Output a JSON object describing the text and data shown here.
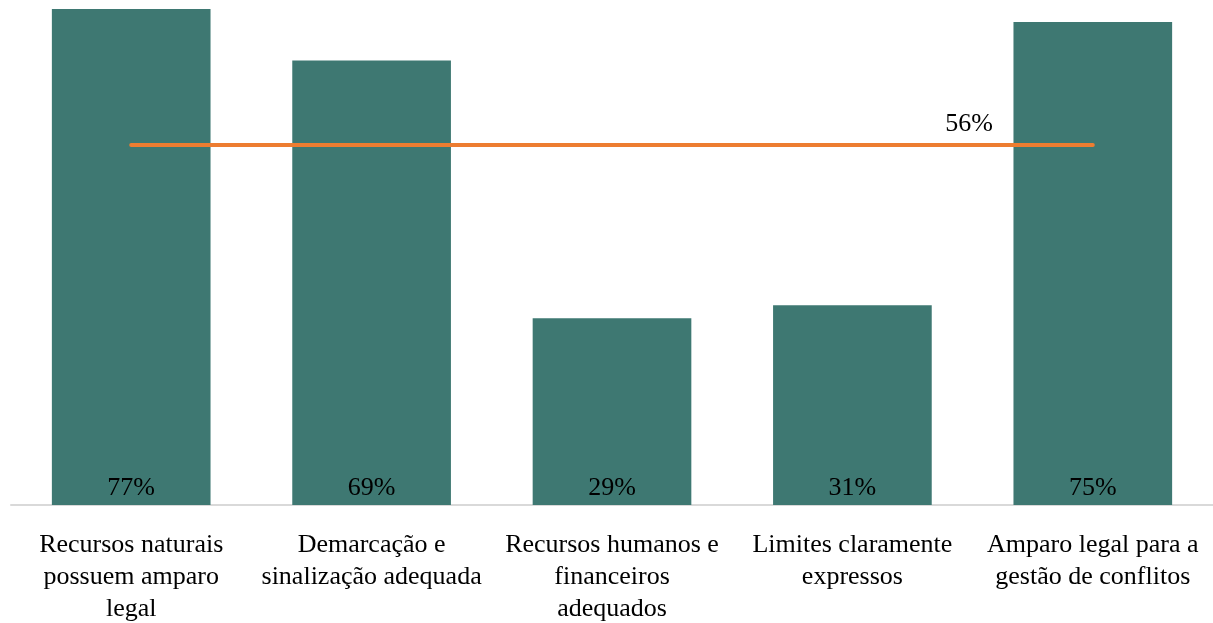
{
  "chart_data": {
    "type": "bar",
    "categories": [
      "Recursos naturais possuem amparo legal",
      "Demarcação e sinalização adequada",
      "Recursos humanos e financeiros adequados",
      "Limites claramente expressos",
      "Amparo legal para a gestão de conflitos"
    ],
    "values": [
      77,
      69,
      29,
      31,
      75
    ],
    "value_labels": [
      "77%",
      "69%",
      "29%",
      "31%",
      "75%"
    ],
    "color": "#3e7872",
    "ref_lines": [
      {
        "axis": "y",
        "value": 56,
        "label": "56%",
        "color": "#ed7d31"
      }
    ],
    "tick_labels": "x"
  }
}
